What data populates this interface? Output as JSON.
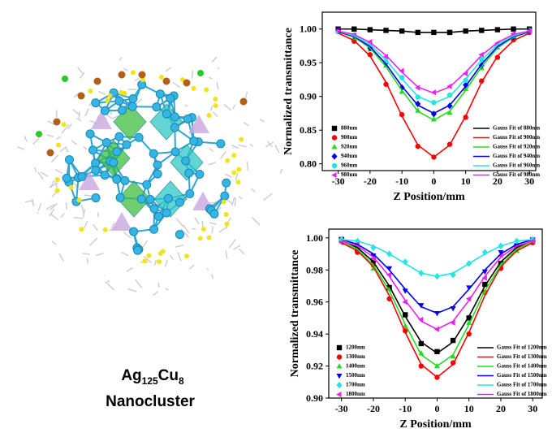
{
  "structure_label": {
    "element1": "Ag",
    "count1": "125",
    "element2": "Cu",
    "count2": "8",
    "name": "Nanocluster"
  },
  "chart_data": [
    {
      "type": "scatter",
      "xlabel": "Z Position/mm",
      "ylabel": "Normalized transmittance",
      "xlim": [
        -35,
        32
      ],
      "ylim": [
        0.79,
        1.025
      ],
      "xticks": [
        -30,
        -20,
        -10,
        0,
        10,
        20,
        30
      ],
      "yticks": [
        {
          "value": 0.8,
          "label": "0.80"
        },
        0.85,
        {
          "value": 0.9,
          "label": "0.90"
        },
        0.95,
        {
          "value": 1,
          "label": "1.00"
        }
      ],
      "x": [
        -30,
        -25,
        -20,
        -15,
        -10,
        -5,
        0,
        5,
        10,
        15,
        20,
        25,
        30
      ],
      "series": [
        {
          "name": "880nm",
          "color": "#000000",
          "marker": "square",
          "values": [
            1.0,
            1.0,
            0.999,
            0.998,
            0.997,
            0.995,
            0.995,
            0.995,
            0.997,
            0.998,
            0.999,
            1.0,
            1.0
          ]
        },
        {
          "name": "900nm",
          "color": "#ff0000",
          "marker": "circle",
          "values": [
            0.996,
            0.982,
            0.962,
            0.918,
            0.873,
            0.826,
            0.81,
            0.829,
            0.869,
            0.923,
            0.958,
            0.984,
            0.995
          ]
        },
        {
          "name": "920nm",
          "color": "#22dd22",
          "marker": "triangle-up",
          "values": [
            0.997,
            0.987,
            0.97,
            0.946,
            0.907,
            0.879,
            0.866,
            0.876,
            0.911,
            0.942,
            0.973,
            0.989,
            0.996
          ]
        },
        {
          "name": "940nm",
          "color": "#0000ee",
          "marker": "diamond",
          "values": [
            0.998,
            0.99,
            0.972,
            0.95,
            0.913,
            0.889,
            0.874,
            0.886,
            0.917,
            0.946,
            0.975,
            0.988,
            0.997
          ]
        },
        {
          "name": "960nm",
          "color": "#22e5e5",
          "marker": "circle",
          "values": [
            0.996,
            0.991,
            0.978,
            0.952,
            0.928,
            0.899,
            0.891,
            0.902,
            0.924,
            0.955,
            0.976,
            0.99,
            0.998
          ]
        },
        {
          "name": "980nm",
          "color": "#ee22ee",
          "marker": "triangle-left",
          "values": [
            0.998,
            0.991,
            0.981,
            0.959,
            0.938,
            0.913,
            0.906,
            0.915,
            0.934,
            0.962,
            0.979,
            0.993,
            0.997
          ]
        },
        {
          "name": "Gauss Fit of 880nm",
          "color": "#000000",
          "line": true,
          "values": [
            1.0,
            1.0,
            0.999,
            0.998,
            0.997,
            0.995,
            0.995,
            0.995,
            0.997,
            0.998,
            0.999,
            1.0,
            1.0
          ]
        },
        {
          "name": "Gauss Fit of 900nm",
          "color": "#ff0000",
          "line": true,
          "values": [
            0.994,
            0.983,
            0.96,
            0.921,
            0.871,
            0.828,
            0.81,
            0.828,
            0.871,
            0.921,
            0.96,
            0.983,
            0.994
          ]
        },
        {
          "name": "Gauss Fit of 920nm",
          "color": "#22dd22",
          "line": true,
          "values": [
            0.996,
            0.988,
            0.972,
            0.944,
            0.909,
            0.878,
            0.865,
            0.878,
            0.909,
            0.944,
            0.972,
            0.988,
            0.996
          ]
        },
        {
          "name": "Gauss Fit of 940nm",
          "color": "#0000ee",
          "line": true,
          "values": [
            0.996,
            0.989,
            0.974,
            0.948,
            0.915,
            0.887,
            0.875,
            0.887,
            0.915,
            0.948,
            0.974,
            0.989,
            0.996
          ]
        },
        {
          "name": "Gauss Fit of 960nm",
          "color": "#22e5e5",
          "line": true,
          "values": [
            0.997,
            0.99,
            0.977,
            0.954,
            0.926,
            0.9,
            0.89,
            0.9,
            0.926,
            0.954,
            0.977,
            0.99,
            0.997
          ]
        },
        {
          "name": "Gauss Fit of 980nm",
          "color": "#ee22ee",
          "line": true,
          "values": [
            0.997,
            0.992,
            0.98,
            0.961,
            0.936,
            0.914,
            0.905,
            0.914,
            0.936,
            0.961,
            0.98,
            0.992,
            0.997
          ]
        }
      ]
    },
    {
      "type": "scatter",
      "xlabel": "Z Position/mm",
      "ylabel": "Normalized transmittance",
      "xlim": [
        -34,
        33
      ],
      "ylim": [
        0.9,
        1.0055
      ],
      "xticks": [
        -30,
        -20,
        -10,
        0,
        10,
        20,
        30
      ],
      "yticks": [
        {
          "value": 0.9,
          "label": "0.90"
        },
        0.92,
        0.94,
        0.96,
        0.98,
        {
          "value": 1,
          "label": "1.00"
        }
      ],
      "x": [
        -30,
        -25,
        -20,
        -15,
        -10,
        -5,
        0,
        5,
        10,
        15,
        20,
        25,
        30
      ],
      "series": [
        {
          "name": "1200nm",
          "color": "#000000",
          "marker": "square",
          "values": [
            0.999,
            0.993,
            0.986,
            0.969,
            0.952,
            0.934,
            0.929,
            0.936,
            0.95,
            0.971,
            0.984,
            0.995,
            0.998
          ]
        },
        {
          "name": "1300nm",
          "color": "#ff0000",
          "marker": "circle",
          "values": [
            0.998,
            0.991,
            0.983,
            0.962,
            0.942,
            0.92,
            0.913,
            0.922,
            0.94,
            0.966,
            0.981,
            0.993,
            0.997
          ]
        },
        {
          "name": "1400nm",
          "color": "#22dd22",
          "marker": "triangle-up",
          "values": [
            0.999,
            0.994,
            0.981,
            0.968,
            0.945,
            0.928,
            0.92,
            0.926,
            0.947,
            0.966,
            0.984,
            0.992,
            0.998
          ]
        },
        {
          "name": "1500nm",
          "color": "#0000ee",
          "marker": "triangle-down",
          "values": [
            0.998,
            0.997,
            0.989,
            0.981,
            0.967,
            0.958,
            0.953,
            0.956,
            0.969,
            0.979,
            0.991,
            0.995,
            0.999
          ]
        },
        {
          "name": "1700nm",
          "color": "#22e5e5",
          "marker": "diamond",
          "values": [
            0.999,
            0.998,
            0.994,
            0.99,
            0.985,
            0.978,
            0.976,
            0.977,
            0.984,
            0.991,
            0.995,
            0.998,
            0.999
          ]
        },
        {
          "name": "1800nm",
          "color": "#ee22ee",
          "marker": "triangle-left",
          "values": [
            0.997,
            0.996,
            0.987,
            0.977,
            0.96,
            0.949,
            0.943,
            0.947,
            0.962,
            0.975,
            0.989,
            0.994,
            0.998
          ]
        },
        {
          "name": "Gauss Fit of 1200nm",
          "color": "#000000",
          "line": true,
          "values": [
            0.998,
            0.994,
            0.985,
            0.97,
            0.951,
            0.935,
            0.928,
            0.935,
            0.951,
            0.97,
            0.985,
            0.994,
            0.998
          ]
        },
        {
          "name": "Gauss Fit of 1300nm",
          "color": "#ff0000",
          "line": true,
          "values": [
            0.997,
            0.992,
            0.982,
            0.964,
            0.941,
            0.921,
            0.913,
            0.921,
            0.941,
            0.964,
            0.982,
            0.992,
            0.997
          ]
        },
        {
          "name": "Gauss Fit of 1400nm",
          "color": "#22dd22",
          "line": true,
          "values": [
            0.998,
            0.993,
            0.983,
            0.967,
            0.946,
            0.927,
            0.92,
            0.927,
            0.946,
            0.967,
            0.983,
            0.993,
            0.998
          ]
        },
        {
          "name": "Gauss Fit of 1500nm",
          "color": "#0000ee",
          "line": true,
          "values": [
            0.999,
            0.996,
            0.99,
            0.98,
            0.968,
            0.957,
            0.953,
            0.957,
            0.968,
            0.98,
            0.99,
            0.996,
            0.999
          ]
        },
        {
          "name": "Gauss Fit of 1700nm",
          "color": "#22e5e5",
          "line": true,
          "values": [
            0.999,
            0.998,
            0.995,
            0.99,
            0.984,
            0.978,
            0.976,
            0.978,
            0.984,
            0.99,
            0.995,
            0.998,
            0.999
          ]
        },
        {
          "name": "Gauss Fit of 1800nm",
          "color": "#ee22ee",
          "line": true,
          "values": [
            0.998,
            0.995,
            0.988,
            0.976,
            0.961,
            0.948,
            0.943,
            0.948,
            0.961,
            0.976,
            0.988,
            0.995,
            0.998
          ]
        }
      ]
    }
  ]
}
